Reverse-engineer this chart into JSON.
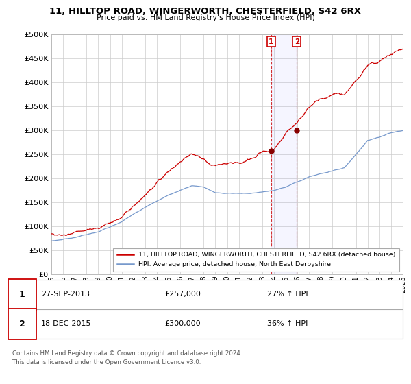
{
  "title1": "11, HILLTOP ROAD, WINGERWORTH, CHESTERFIELD, S42 6RX",
  "title2": "Price paid vs. HM Land Registry's House Price Index (HPI)",
  "ylim": [
    0,
    500000
  ],
  "yticks": [
    0,
    50000,
    100000,
    150000,
    200000,
    250000,
    300000,
    350000,
    400000,
    450000,
    500000
  ],
  "line1_color": "#cc0000",
  "line2_color": "#7799cc",
  "marker_color": "#990000",
  "vline_color": "#cc0000",
  "legend_label1": "11, HILLTOP ROAD, WINGERWORTH, CHESTERFIELD, S42 6RX (detached house)",
  "legend_label2": "HPI: Average price, detached house, North East Derbyshire",
  "sale1_date": "27-SEP-2013",
  "sale1_price": "£257,000",
  "sale1_hpi": "27% ↑ HPI",
  "sale2_date": "18-DEC-2015",
  "sale2_price": "£300,000",
  "sale2_hpi": "36% ↑ HPI",
  "footnote1": "Contains HM Land Registry data © Crown copyright and database right 2024.",
  "footnote2": "This data is licensed under the Open Government Licence v3.0.",
  "bg_color": "#ffffff",
  "grid_color": "#cccccc",
  "sale1_x": 2013.75,
  "sale2_x": 2015.96,
  "sale1_y": 257000,
  "sale2_y": 300000,
  "xmin": 1995,
  "xmax": 2025
}
